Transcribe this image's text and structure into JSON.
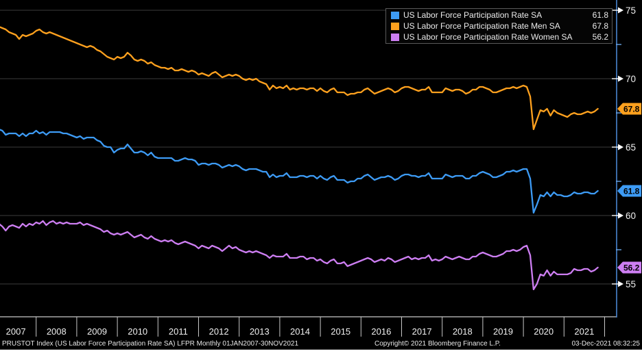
{
  "colors": {
    "background": "#000000",
    "gridline": "#3d3d3d",
    "axis_line": "#4a86d2",
    "axis_bottom": "#c9c9c9",
    "tick_arrow": "#ffffff",
    "minor_tick": "#6aa6e8",
    "text": "#f0f0f0",
    "tag_text": "#000000"
  },
  "legend": {
    "items": [
      {
        "label": "US Labor Force Participation Rate SA",
        "value": "61.8",
        "color": "#3d9bf5"
      },
      {
        "label": "US Labor Force Participation Rate Men SA",
        "value": "67.8",
        "color": "#ffa11e"
      },
      {
        "label": "US Labor Force Participation Rate Women SA",
        "value": "56.2",
        "color": "#cd7ef2"
      }
    ]
  },
  "axes": {
    "y_major_ticks": [
      75,
      70,
      65,
      60,
      55
    ],
    "y_minor_ticks": [
      72.5,
      67.5,
      62.5,
      57.5
    ],
    "x_year_labels": [
      "2007",
      "2008",
      "2009",
      "2010",
      "2011",
      "2012",
      "2013",
      "2014",
      "2015",
      "2016",
      "2017",
      "2018",
      "2019",
      "2020",
      "2021"
    ]
  },
  "statusbar": {
    "left": "PRUSTOT Index (US Labor Force Participation Rate SA) LFPR  Monthly 01JAN2007-30NOV2021",
    "center": "Copyright© 2021 Bloomberg Finance L.P.",
    "right": "03-Dec-2021 08:32:25"
  },
  "chart_data": {
    "type": "line",
    "frequency": "monthly",
    "x_start": "2007-01",
    "x_end": "2021-11",
    "title": "",
    "xlabel": "",
    "ylabel": "",
    "ylim": [
      52.6,
      75.75
    ],
    "grid": true,
    "legend_position": "top-right",
    "series": [
      {
        "name": "US Labor Force Participation Rate SA",
        "color": "#3d9bf5",
        "last": 61.8,
        "values": [
          66.4,
          66.3,
          66.2,
          65.9,
          66.0,
          66.0,
          66.0,
          65.8,
          66.0,
          65.8,
          66.0,
          66.0,
          66.2,
          66.0,
          66.1,
          65.9,
          66.1,
          66.1,
          66.1,
          66.1,
          66.0,
          66.0,
          65.9,
          65.8,
          65.7,
          65.8,
          65.6,
          65.7,
          65.7,
          65.7,
          65.5,
          65.4,
          65.1,
          65.0,
          65.0,
          64.6,
          64.8,
          64.9,
          64.9,
          65.2,
          64.9,
          64.6,
          64.6,
          64.7,
          64.6,
          64.4,
          64.6,
          64.3,
          64.2,
          64.2,
          64.2,
          64.2,
          64.2,
          64.0,
          64.0,
          64.1,
          64.2,
          64.1,
          64.1,
          64.0,
          63.7,
          63.8,
          63.8,
          63.7,
          63.8,
          63.8,
          63.7,
          63.5,
          63.6,
          63.7,
          63.6,
          63.7,
          63.6,
          63.4,
          63.3,
          63.4,
          63.4,
          63.4,
          63.3,
          63.2,
          63.2,
          62.8,
          63.0,
          62.8,
          62.9,
          62.9,
          63.1,
          62.8,
          62.8,
          62.8,
          62.9,
          62.9,
          62.8,
          62.9,
          62.9,
          62.7,
          62.9,
          62.7,
          62.6,
          62.8,
          62.9,
          62.6,
          62.6,
          62.6,
          62.4,
          62.5,
          62.5,
          62.7,
          62.7,
          62.9,
          63.0,
          62.8,
          62.6,
          62.7,
          62.8,
          62.8,
          62.9,
          62.8,
          62.6,
          62.7,
          62.9,
          63.0,
          63.0,
          62.9,
          62.9,
          62.8,
          62.9,
          62.9,
          63.1,
          62.7,
          62.7,
          62.7,
          62.7,
          63.0,
          62.9,
          62.8,
          62.9,
          62.9,
          62.9,
          62.7,
          62.7,
          62.9,
          62.9,
          63.1,
          63.2,
          63.1,
          63.0,
          62.8,
          62.8,
          62.9,
          63.0,
          63.2,
          63.2,
          63.3,
          63.2,
          63.3,
          63.4,
          63.4,
          62.7,
          60.2,
          60.8,
          61.5,
          61.4,
          61.7,
          61.4,
          61.7,
          61.5,
          61.5,
          61.4,
          61.4,
          61.5,
          61.7,
          61.6,
          61.6,
          61.7,
          61.7,
          61.6,
          61.6,
          61.8
        ]
      },
      {
        "name": "US Labor Force Participation Rate Men SA",
        "color": "#ffa11e",
        "last": 67.8,
        "values": [
          73.9,
          73.8,
          73.7,
          73.6,
          73.4,
          73.3,
          73.2,
          72.9,
          73.2,
          73.1,
          73.2,
          73.3,
          73.5,
          73.6,
          73.4,
          73.3,
          73.4,
          73.3,
          73.2,
          73.1,
          73.0,
          72.9,
          72.8,
          72.7,
          72.6,
          72.5,
          72.4,
          72.3,
          72.4,
          72.3,
          72.1,
          72.0,
          71.8,
          71.6,
          71.5,
          71.4,
          71.6,
          71.5,
          71.6,
          71.9,
          71.7,
          71.4,
          71.3,
          71.4,
          71.3,
          71.1,
          71.2,
          71.0,
          70.9,
          70.8,
          70.8,
          70.7,
          70.8,
          70.6,
          70.6,
          70.7,
          70.6,
          70.5,
          70.6,
          70.5,
          70.3,
          70.4,
          70.3,
          70.2,
          70.4,
          70.5,
          70.3,
          70.1,
          70.2,
          70.3,
          70.2,
          70.3,
          70.2,
          70.0,
          69.9,
          70.0,
          69.9,
          70.0,
          69.8,
          69.7,
          69.6,
          69.2,
          69.5,
          69.3,
          69.4,
          69.3,
          69.5,
          69.2,
          69.3,
          69.2,
          69.3,
          69.3,
          69.2,
          69.3,
          69.3,
          69.1,
          69.3,
          69.1,
          69.0,
          69.2,
          69.3,
          69.0,
          69.0,
          69.0,
          68.8,
          68.9,
          68.9,
          69.0,
          69.0,
          69.2,
          69.3,
          69.1,
          68.9,
          69.0,
          69.1,
          69.2,
          69.3,
          69.2,
          69.0,
          69.1,
          69.3,
          69.4,
          69.4,
          69.3,
          69.2,
          69.1,
          69.2,
          69.2,
          69.4,
          69.0,
          69.0,
          69.0,
          69.0,
          69.3,
          69.2,
          69.1,
          69.2,
          69.2,
          69.1,
          68.9,
          69.0,
          69.2,
          69.2,
          69.4,
          69.4,
          69.3,
          69.2,
          69.0,
          69.0,
          69.1,
          69.2,
          69.3,
          69.3,
          69.4,
          69.3,
          69.4,
          69.5,
          69.4,
          68.7,
          66.3,
          67.0,
          67.7,
          67.6,
          67.8,
          67.3,
          67.7,
          67.5,
          67.4,
          67.3,
          67.2,
          67.4,
          67.5,
          67.4,
          67.4,
          67.5,
          67.6,
          67.5,
          67.6,
          67.8
        ]
      },
      {
        "name": "US Labor Force Participation Rate Women SA",
        "color": "#cd7ef2",
        "last": 56.2,
        "values": [
          59.5,
          59.4,
          59.2,
          58.9,
          59.2,
          59.3,
          59.2,
          59.1,
          59.4,
          59.2,
          59.4,
          59.3,
          59.5,
          59.4,
          59.6,
          59.3,
          59.5,
          59.6,
          59.4,
          59.5,
          59.4,
          59.5,
          59.4,
          59.4,
          59.4,
          59.5,
          59.3,
          59.4,
          59.3,
          59.2,
          59.1,
          59.0,
          58.8,
          58.9,
          58.7,
          58.6,
          58.7,
          58.6,
          58.7,
          58.8,
          58.6,
          58.4,
          58.5,
          58.6,
          58.4,
          58.3,
          58.5,
          58.3,
          58.2,
          58.1,
          58.2,
          58.1,
          58.2,
          58.0,
          57.9,
          58.0,
          58.1,
          58.0,
          57.9,
          57.8,
          57.6,
          57.8,
          57.7,
          57.6,
          57.8,
          57.7,
          57.6,
          57.4,
          57.6,
          57.8,
          57.6,
          57.7,
          57.5,
          57.4,
          57.3,
          57.4,
          57.3,
          57.4,
          57.3,
          57.2,
          57.1,
          56.9,
          57.1,
          57.0,
          57.0,
          57.0,
          57.2,
          56.9,
          56.9,
          56.9,
          57.0,
          57.0,
          56.8,
          56.9,
          56.9,
          56.7,
          56.8,
          56.6,
          56.5,
          56.7,
          56.8,
          56.5,
          56.5,
          56.6,
          56.3,
          56.4,
          56.5,
          56.6,
          56.7,
          56.8,
          56.9,
          56.8,
          56.6,
          56.7,
          56.8,
          56.7,
          56.9,
          56.8,
          56.6,
          56.7,
          56.8,
          56.9,
          57.0,
          56.8,
          56.9,
          56.8,
          56.9,
          56.9,
          57.1,
          56.7,
          56.8,
          56.7,
          56.8,
          57.0,
          56.9,
          56.8,
          56.9,
          57.0,
          56.9,
          56.8,
          56.8,
          57.0,
          57.0,
          57.2,
          57.3,
          57.2,
          57.1,
          57.0,
          57.0,
          57.1,
          57.2,
          57.4,
          57.4,
          57.5,
          57.4,
          57.5,
          57.7,
          57.8,
          57.1,
          54.6,
          55.0,
          55.7,
          55.6,
          56.0,
          55.6,
          55.9,
          55.7,
          55.7,
          55.7,
          55.7,
          55.8,
          56.1,
          56.0,
          56.0,
          56.1,
          56.1,
          55.9,
          56.0,
          56.2
        ]
      }
    ]
  }
}
